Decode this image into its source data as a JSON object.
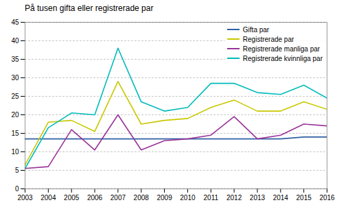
{
  "chart_data": {
    "type": "line",
    "title": "På tusen gifta eller registrerade par",
    "x": [
      2003,
      2004,
      2005,
      2006,
      2007,
      2008,
      2009,
      2010,
      2011,
      2012,
      2013,
      2014,
      2015,
      2016
    ],
    "series": [
      {
        "name": "Gifta par",
        "color": "#2E5FA3",
        "values": [
          13.5,
          13.5,
          13.5,
          13.5,
          13.5,
          13.5,
          13.5,
          13.5,
          13.5,
          13.5,
          13.5,
          13.5,
          14.0,
          14.0
        ]
      },
      {
        "name": "Registrerade par",
        "color": "#C8C800",
        "values": [
          6.5,
          18.0,
          18.5,
          15.5,
          29.0,
          17.5,
          18.5,
          19.0,
          22.0,
          24.0,
          21.0,
          21.0,
          23.5,
          21.5
        ]
      },
      {
        "name": "Registrerade manliga par",
        "color": "#993399",
        "values": [
          5.5,
          6.0,
          16.0,
          10.5,
          20.0,
          10.5,
          13.0,
          13.5,
          14.5,
          19.5,
          13.5,
          14.5,
          17.5,
          17.0
        ]
      },
      {
        "name": "Registrerade kvinnliga par",
        "color": "#00BBBB",
        "values": [
          5.5,
          16.5,
          20.5,
          20.0,
          38.0,
          23.5,
          21.0,
          22.0,
          28.5,
          28.5,
          26.0,
          25.5,
          28.0,
          24.5
        ]
      }
    ],
    "xlim": [
      2003,
      2016
    ],
    "xticks": [
      2003,
      2004,
      2005,
      2006,
      2007,
      2008,
      2009,
      2010,
      2011,
      2012,
      2013,
      2014,
      2015,
      2016
    ],
    "ylim": [
      0,
      45
    ],
    "yticks": [
      0,
      5,
      10,
      15,
      20,
      25,
      30,
      35,
      40,
      45
    ],
    "grid": true,
    "legend": "upper right"
  }
}
